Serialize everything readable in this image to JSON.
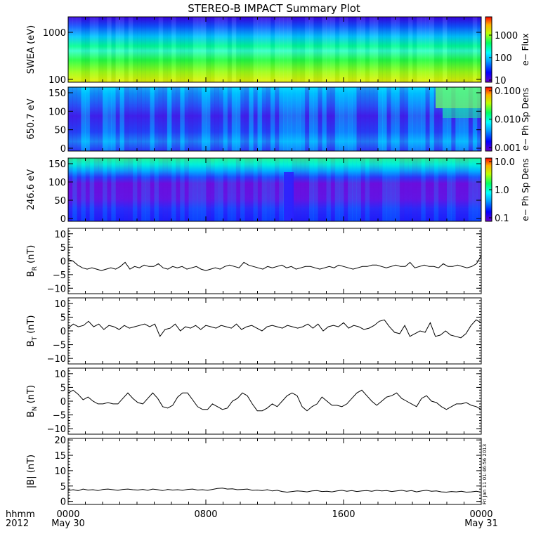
{
  "chart_data": {
    "type": "multi-panel time series",
    "title": "STEREO-B IMPACT Summary Plot",
    "x_axis": {
      "row1_label": "hhmm",
      "row2_label": "2012",
      "ticks": [
        "0000",
        "0800",
        "1600",
        "0000"
      ],
      "date_ticks": [
        "May 30",
        "",
        "",
        "May 31"
      ],
      "range_hours": [
        0,
        24
      ]
    },
    "side_note": "Fri Jan 11 01:46:56 2013",
    "spectrograms": [
      {
        "name": "swea",
        "ylabel": "SWEA (eV)",
        "yticks": [
          "1000",
          "100"
        ],
        "scale": "log",
        "colorbar_label": "e− Flux",
        "colorbar_ticks": [
          "1000",
          "100",
          "10"
        ]
      },
      {
        "name": "pad650",
        "ylabel": "650.7 eV",
        "yticks": [
          "150",
          "100",
          "50",
          "0"
        ],
        "scale": "linear",
        "colorbar_label": "e− Ph Sp Dens",
        "colorbar_ticks": [
          "0.100",
          "0.010",
          "0.001"
        ]
      },
      {
        "name": "pad246",
        "ylabel": "246.6 eV",
        "yticks": [
          "150",
          "100",
          "50",
          "0"
        ],
        "scale": "linear",
        "colorbar_label": "e− Ph Sp Dens",
        "colorbar_ticks": [
          "10.0",
          "1.0",
          "0.1"
        ]
      }
    ],
    "line_panels": [
      {
        "name": "br",
        "ylabel": "B",
        "ylabel_sub": "R",
        "ylabel_unit": "(nT)",
        "ylim": [
          -12,
          12
        ],
        "yticks": [
          "10",
          "5",
          "0",
          "−5",
          "−10"
        ],
        "values": [
          0.5,
          0,
          -1.5,
          -2.5,
          -3,
          -2.5,
          -3,
          -3.5,
          -3,
          -2.5,
          -3,
          -2,
          -0.5,
          -3,
          -2,
          -2.5,
          -1.5,
          -2,
          -2,
          -1,
          -2.5,
          -3,
          -2,
          -2.5,
          -2,
          -3,
          -2.5,
          -2,
          -3,
          -3.5,
          -3,
          -2.5,
          -3,
          -2,
          -1.5,
          -2,
          -2.5,
          -0.5,
          -1.5,
          -2,
          -2.5,
          -3,
          -2,
          -2.5,
          -2,
          -1.5,
          -2.5,
          -2,
          -3,
          -2.5,
          -2,
          -2,
          -2.5,
          -3,
          -2.5,
          -2,
          -2.5,
          -1.5,
          -2,
          -2.5,
          -3,
          -2.5,
          -2,
          -2,
          -1.5,
          -1.5,
          -2,
          -2.5,
          -2,
          -1.5,
          -2,
          -2,
          -0.5,
          -2.5,
          -2,
          -1.5,
          -2,
          -2,
          -2.5,
          -1,
          -2,
          -2,
          -1.5,
          -2,
          -2.5,
          -2,
          -1,
          2
        ]
      },
      {
        "name": "bt",
        "ylabel": "B",
        "ylabel_sub": "T",
        "ylabel_unit": "(nT)",
        "ylim": [
          -12,
          12
        ],
        "yticks": [
          "10",
          "5",
          "0",
          "−5",
          "−10"
        ],
        "values": [
          1,
          2.5,
          1.5,
          2,
          3.5,
          1.5,
          2.5,
          0.5,
          2,
          1.5,
          0.5,
          2,
          1,
          1.5,
          2,
          2.5,
          1.5,
          2.5,
          -2,
          0.5,
          1,
          2.5,
          0,
          1.5,
          1,
          2,
          0.5,
          2,
          1.5,
          1,
          2,
          1.5,
          1,
          2.5,
          0.5,
          1.5,
          2,
          1,
          0,
          1.5,
          2,
          1.5,
          1,
          2,
          1.5,
          1,
          1.5,
          2.5,
          1,
          2.5,
          0,
          1.5,
          2,
          1.5,
          3,
          1,
          2,
          1.5,
          0.5,
          1,
          2,
          3.5,
          4,
          1.5,
          -0.5,
          -1,
          2,
          -2,
          -1,
          0,
          -0.5,
          3,
          -2,
          -1.5,
          0,
          -1.5,
          -2,
          -2.5,
          -1,
          2,
          4,
          3
        ]
      },
      {
        "name": "bn",
        "ylabel": "B",
        "ylabel_sub": "N",
        "ylabel_unit": "(nT)",
        "ylim": [
          -12,
          12
        ],
        "yticks": [
          "10",
          "5",
          "0",
          "−5",
          "−10"
        ],
        "values": [
          3,
          4,
          2.5,
          0.5,
          1.5,
          0,
          -1,
          -1,
          -0.5,
          -1,
          -1,
          1,
          3,
          1,
          -0.5,
          -1,
          1,
          3,
          1,
          -2,
          -2.5,
          -1.5,
          1.5,
          3,
          3,
          0.5,
          -2,
          -3,
          -3,
          -1,
          -2,
          -3,
          -2.5,
          0,
          1,
          3,
          2,
          -1,
          -3.5,
          -3.5,
          -2.5,
          -1,
          -2,
          0,
          2,
          3,
          2,
          -2,
          -3.5,
          -2,
          -1,
          1.5,
          0,
          -1.5,
          -1.5,
          -2,
          -1,
          1,
          3,
          4,
          2,
          0,
          -1.5,
          0,
          1.5,
          2,
          3,
          1,
          0,
          -1,
          -2,
          1,
          2,
          0,
          -0.5,
          -2,
          -3,
          -2,
          -1,
          -1,
          -0.5,
          -1.5,
          -2,
          -3
        ]
      },
      {
        "name": "bmag",
        "ylabel": "|B|",
        "ylabel_sub": "",
        "ylabel_unit": "(nT)",
        "ylim": [
          -1,
          20.5
        ],
        "yticks": [
          "20",
          "15",
          "10",
          "5",
          "0"
        ],
        "values": [
          3.5,
          3.8,
          3.5,
          4,
          3.7,
          3.8,
          3.5,
          3.9,
          4,
          3.8,
          3.6,
          3.9,
          4,
          3.8,
          3.7,
          3.9,
          3.6,
          4,
          3.8,
          3.5,
          3.9,
          3.7,
          3.8,
          3.6,
          3.9,
          4,
          3.7,
          3.8,
          3.6,
          3.9,
          4.2,
          4.3,
          4,
          4.1,
          3.8,
          3.9,
          4,
          3.6,
          3.7,
          3.5,
          3.8,
          3.4,
          3.6,
          3.2,
          3,
          3.2,
          3.4,
          3.3,
          3.1,
          3.4,
          3.5,
          3.2,
          3.3,
          3.1,
          3.4,
          3.6,
          3.3,
          3.5,
          3.2,
          3.4,
          3.5,
          3.3,
          3.6,
          3.4,
          3.5,
          3.2,
          3.4,
          3.6,
          3.3,
          3.5,
          3.1,
          3.4,
          3.6,
          3.3,
          3.4,
          3.1,
          3,
          3.2,
          3.1,
          3.3,
          3,
          3.1,
          3.3,
          3
        ]
      }
    ]
  }
}
